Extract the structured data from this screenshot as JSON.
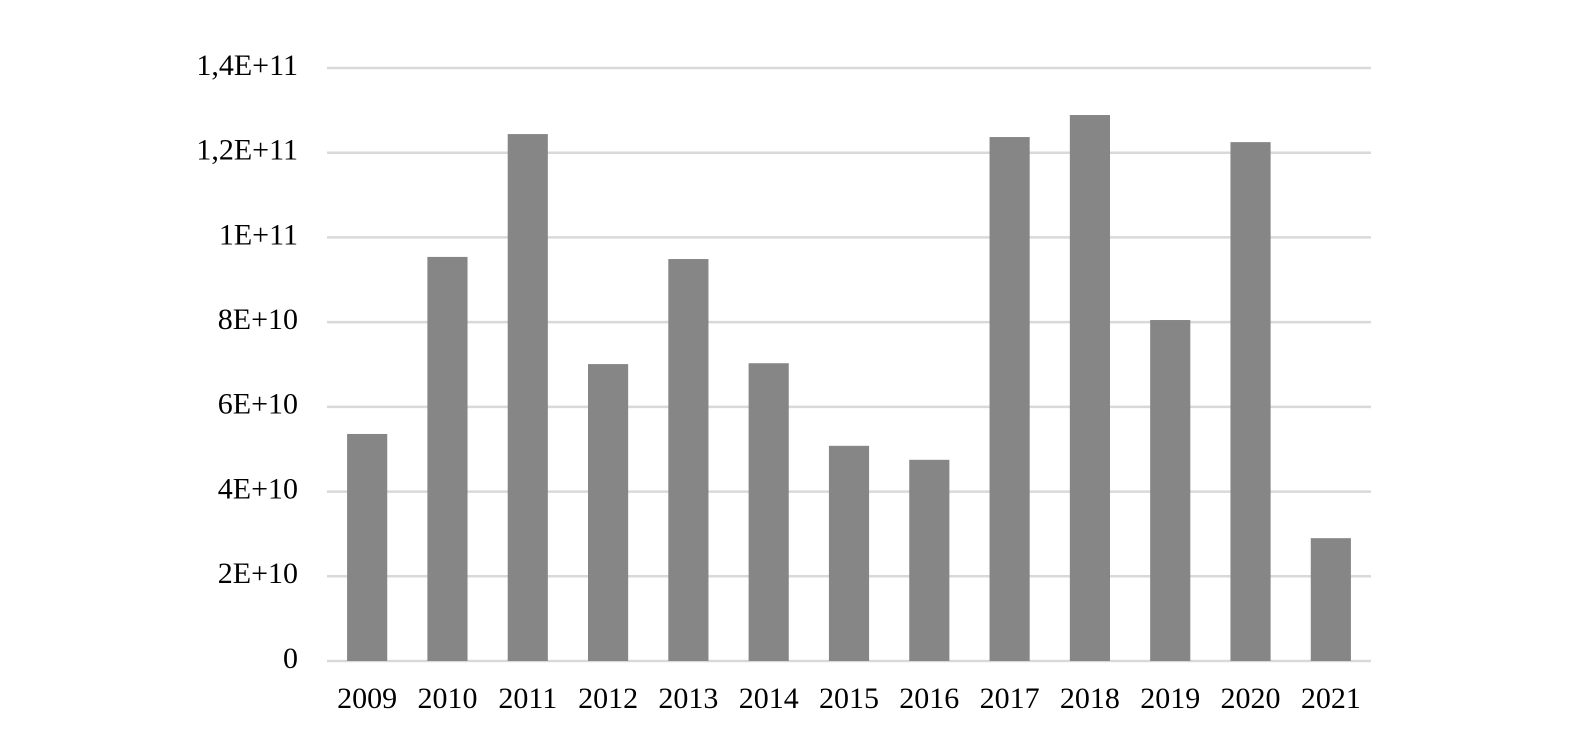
{
  "chart_data": {
    "type": "bar",
    "categories": [
      "2009",
      "2010",
      "2011",
      "2012",
      "2013",
      "2014",
      "2015",
      "2016",
      "2017",
      "2018",
      "2019",
      "2020",
      "2021"
    ],
    "values": [
      53600000000,
      95400000000,
      124400000000,
      70100000000,
      94900000000,
      70300000000,
      50800000000,
      47500000000,
      123700000000,
      128900000000,
      80500000000,
      122500000000,
      29000000000
    ],
    "color": "#868686",
    "ylim": [
      0,
      140000000000
    ],
    "yticks": [
      0,
      {
        "value": 20000000000,
        "label": "2E+10"
      },
      {
        "value": 40000000000,
        "label": "4E+10"
      },
      {
        "value": 60000000000,
        "label": "6E+10"
      },
      {
        "value": 80000000000,
        "label": "8E+10"
      },
      {
        "value": 100000000000,
        "label": "1E+11"
      },
      {
        "value": 120000000000,
        "label": "1,2E+11"
      },
      {
        "value": 140000000000,
        "label": "1,4E+11"
      }
    ],
    "grid": true
  }
}
